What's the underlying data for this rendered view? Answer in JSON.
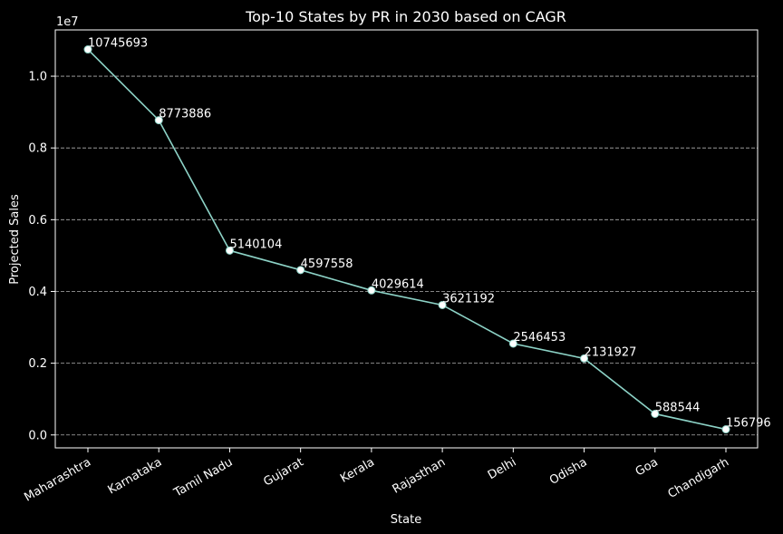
{
  "chart_data": {
    "type": "line",
    "title": "Top-10 States by PR in 2030 based on CAGR",
    "xlabel": "State",
    "ylabel": "Projected Sales",
    "y_offset_label": "1e7",
    "categories": [
      "Maharashtra",
      "Karnataka",
      "Tamil Nadu",
      "Gujarat",
      "Kerala",
      "Rajasthan",
      "Delhi",
      "Odisha",
      "Goa",
      "Chandigarh"
    ],
    "values": [
      10745693,
      8773886,
      5140104,
      4597558,
      4029614,
      3621192,
      2546453,
      2131927,
      588544,
      156796
    ],
    "data_labels": [
      "10745693",
      "8773886",
      "5140104",
      "4597558",
      "4029614",
      "3621192",
      "2546453",
      "2131927",
      "588544",
      "156796"
    ],
    "yticks": [
      0,
      2000000,
      4000000,
      6000000,
      8000000,
      10000000
    ],
    "ytick_labels": [
      "0.0",
      "0.2",
      "0.4",
      "0.6",
      "0.8",
      "1.0"
    ],
    "ylim": [
      -360000,
      11290000
    ],
    "grid": "y-dashed",
    "line_color": "#8dd3c7",
    "marker_color": "#ffffff",
    "background_color": "#000000",
    "text_color": "#ffffff"
  }
}
